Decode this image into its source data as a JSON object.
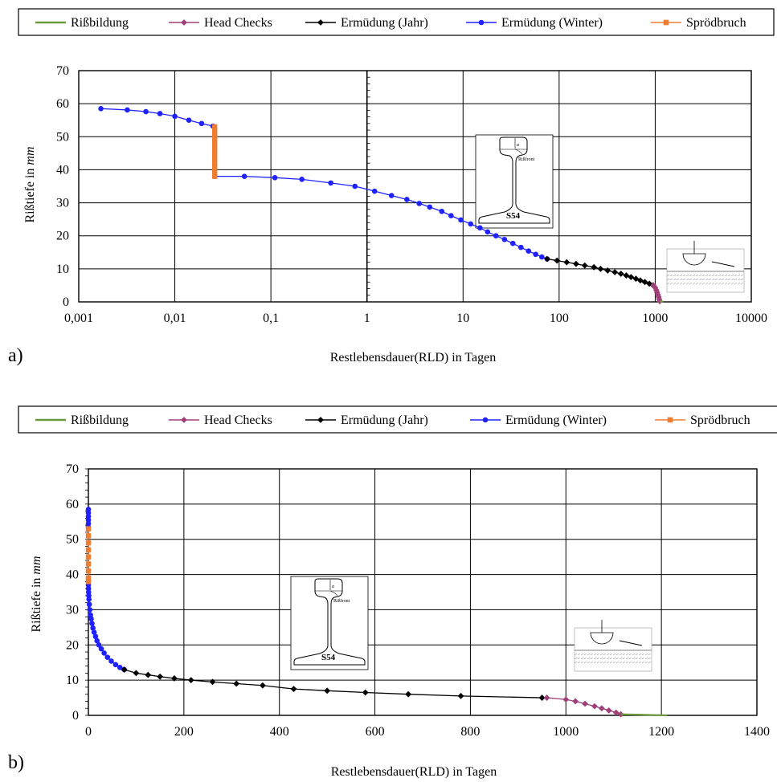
{
  "legend": [
    {
      "name": "Rißbildung",
      "color": "#6a9a3a",
      "marker": "none"
    },
    {
      "name": "Head Checks",
      "color": "#a0407a",
      "marker": "diamond"
    },
    {
      "name": "Ermüdung (Jahr)",
      "color": "#000000",
      "marker": "diamond"
    },
    {
      "name": "Ermüdung (Winter)",
      "color": "#1f22ff",
      "marker": "circle"
    },
    {
      "name": "Sprödbruch",
      "color": "#ed7d31",
      "marker": "square"
    }
  ],
  "inset": {
    "rail_label": "S54",
    "crack_label": "Rißfront",
    "depth_label": "a"
  },
  "chart_data": [
    {
      "type": "line",
      "panel_label": "a)",
      "xscale": "log",
      "xlabel": "Restlebensdauer(RLD) in Tagen",
      "ylabel": "Rißtiefe in mm",
      "xlim": [
        0.001,
        10000
      ],
      "ylim": [
        0,
        70
      ],
      "grid": true,
      "legend_position": "top",
      "x_tick_labels": [
        "0,001",
        "0,01",
        "0,1",
        "1",
        "10",
        "100",
        "1000",
        "10000"
      ],
      "y_tick_labels": [
        "0",
        "10",
        "20",
        "30",
        "40",
        "50",
        "60",
        "70"
      ],
      "series": [
        {
          "name": "Ermüdung (Winter)",
          "points": [
            [
              0.0017,
              58.5
            ],
            [
              0.0032,
              58.1
            ],
            [
              0.005,
              57.6
            ],
            [
              0.007,
              57.0
            ],
            [
              0.01,
              56.2
            ],
            [
              0.014,
              55.0
            ],
            [
              0.019,
              54.0
            ],
            [
              0.025,
              53.2
            ],
            [
              0.026,
              38
            ],
            [
              0.053,
              38
            ],
            [
              0.11,
              37.6
            ],
            [
              0.21,
              37.1
            ],
            [
              0.42,
              36.0
            ],
            [
              0.75,
              35.0
            ],
            [
              1.2,
              33.5
            ],
            [
              1.8,
              32.2
            ],
            [
              2.6,
              31.0
            ],
            [
              3.5,
              29.8
            ],
            [
              4.5,
              28.7
            ],
            [
              6.0,
              27.4
            ],
            [
              7.5,
              26.1
            ],
            [
              9.5,
              24.8
            ],
            [
              12,
              23.6
            ],
            [
              15,
              22.4
            ],
            [
              18,
              21.2
            ],
            [
              22,
              20.0
            ],
            [
              27,
              18.9
            ],
            [
              33,
              17.7
            ],
            [
              40,
              16.5
            ],
            [
              48,
              15.4
            ],
            [
              57,
              14.4
            ],
            [
              66,
              13.6
            ],
            [
              75,
              13.0
            ]
          ]
        },
        {
          "name": "Sprödbruch",
          "points": [
            [
              0.026,
              53
            ],
            [
              0.026,
              52
            ],
            [
              0.026,
              51
            ],
            [
              0.026,
              50
            ],
            [
              0.026,
              49
            ],
            [
              0.026,
              48
            ],
            [
              0.026,
              47
            ],
            [
              0.026,
              46
            ],
            [
              0.026,
              45
            ],
            [
              0.026,
              44
            ],
            [
              0.026,
              43
            ],
            [
              0.026,
              42
            ],
            [
              0.026,
              41
            ],
            [
              0.026,
              40
            ],
            [
              0.026,
              39
            ],
            [
              0.026,
              38
            ]
          ]
        },
        {
          "name": "Ermüdung (Jahr)",
          "points": [
            [
              75,
              13.0
            ],
            [
              95,
              12.5
            ],
            [
              120,
              12.0
            ],
            [
              150,
              11.5
            ],
            [
              185,
              11.0
            ],
            [
              230,
              10.5
            ],
            [
              270,
              10.0
            ],
            [
              320,
              9.5
            ],
            [
              380,
              9.0
            ],
            [
              440,
              8.5
            ],
            [
              500,
              8.0
            ],
            [
              560,
              7.5
            ],
            [
              630,
              7.0
            ],
            [
              700,
              6.5
            ],
            [
              780,
              6.0
            ],
            [
              870,
              5.5
            ],
            [
              950,
              5.0
            ]
          ]
        },
        {
          "name": "Head Checks",
          "points": [
            [
              960,
              5.0
            ],
            [
              1000,
              4.3
            ],
            [
              1025,
              3.6
            ],
            [
              1045,
              2.9
            ],
            [
              1065,
              2.2
            ],
            [
              1085,
              1.5
            ],
            [
              1100,
              0.8
            ],
            [
              1115,
              0.2
            ]
          ]
        },
        {
          "name": "Rißbildung",
          "points": [
            [
              1115,
              0.2
            ],
            [
              1212,
              0
            ]
          ]
        }
      ]
    },
    {
      "type": "line",
      "panel_label": "b)",
      "xscale": "linear",
      "xlabel": "Restlebensdauer(RLD)  in Tagen",
      "ylabel": "Rißtiefe in mm",
      "xlim": [
        0,
        1400
      ],
      "ylim": [
        0,
        70
      ],
      "grid": true,
      "legend_position": "top",
      "x_tick_labels": [
        "0",
        "200",
        "400",
        "600",
        "800",
        "1000",
        "1200",
        "1400"
      ],
      "y_tick_labels": [
        "0",
        "10",
        "20",
        "30",
        "40",
        "50",
        "60",
        "70"
      ],
      "series": [
        {
          "name": "Ermüdung (Winter)",
          "points": [
            [
              0,
              58.5
            ],
            [
              0,
              57.5
            ],
            [
              0,
              56.5
            ],
            [
              0,
              55.5
            ],
            [
              0,
              54.5
            ],
            [
              0,
              53.5
            ],
            [
              0,
              38
            ],
            [
              0,
              37
            ],
            [
              0.2,
              36
            ],
            [
              0.4,
              35
            ],
            [
              0.8,
              34
            ],
            [
              1.2,
              33
            ],
            [
              2.0,
              31.5
            ],
            [
              3.0,
              30
            ],
            [
              4.5,
              28.5
            ],
            [
              6,
              27.4
            ],
            [
              7.5,
              26.1
            ],
            [
              9.5,
              24.8
            ],
            [
              12,
              23.6
            ],
            [
              15,
              22.4
            ],
            [
              18,
              21.2
            ],
            [
              22,
              20.0
            ],
            [
              27,
              18.9
            ],
            [
              33,
              17.7
            ],
            [
              40,
              16.5
            ],
            [
              48,
              15.4
            ],
            [
              57,
              14.4
            ],
            [
              66,
              13.6
            ],
            [
              75,
              13.0
            ]
          ]
        },
        {
          "name": "Sprödbruch",
          "points": [
            [
              0,
              53
            ],
            [
              0,
              51
            ],
            [
              0,
              49
            ],
            [
              0,
              47
            ],
            [
              0,
              45
            ],
            [
              0,
              43
            ],
            [
              0,
              41
            ],
            [
              0,
              39
            ],
            [
              0,
              38
            ]
          ]
        },
        {
          "name": "Ermüdung (Jahr)",
          "points": [
            [
              75,
              13.0
            ],
            [
              100,
              12.0
            ],
            [
              125,
              11.5
            ],
            [
              150,
              11.0
            ],
            [
              180,
              10.5
            ],
            [
              215,
              10.0
            ],
            [
              260,
              9.5
            ],
            [
              310,
              9.0
            ],
            [
              365,
              8.5
            ],
            [
              430,
              7.5
            ],
            [
              500,
              7.0
            ],
            [
              580,
              6.5
            ],
            [
              670,
              6.0
            ],
            [
              780,
              5.5
            ],
            [
              950,
              5.0
            ]
          ]
        },
        {
          "name": "Head Checks",
          "points": [
            [
              960,
              5.0
            ],
            [
              1000,
              4.5
            ],
            [
              1020,
              4.0
            ],
            [
              1040,
              3.3
            ],
            [
              1060,
              2.6
            ],
            [
              1075,
              2.0
            ],
            [
              1090,
              1.4
            ],
            [
              1105,
              0.8
            ],
            [
              1115,
              0.3
            ]
          ]
        },
        {
          "name": "Rißbildung",
          "points": [
            [
              1115,
              0.3
            ],
            [
              1150,
              0.2
            ],
            [
              1180,
              0.1
            ],
            [
              1212,
              0
            ]
          ]
        }
      ]
    }
  ]
}
